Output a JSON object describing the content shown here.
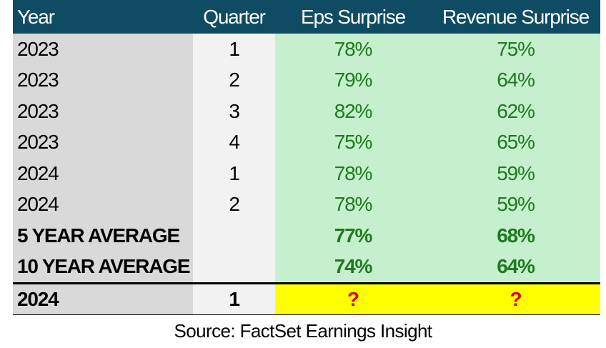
{
  "table": {
    "header": [
      "Year",
      "Quarter",
      "Eps Surprise",
      "Revenue Surprise"
    ],
    "rows": [
      {
        "year": "2023",
        "quarter": "1",
        "eps": "78%",
        "revenue": "75%"
      },
      {
        "year": "2023",
        "quarter": "2",
        "eps": "79%",
        "revenue": "64%"
      },
      {
        "year": "2023",
        "quarter": "3",
        "eps": "82%",
        "revenue": "62%"
      },
      {
        "year": "2023",
        "quarter": "4",
        "eps": "75%",
        "revenue": "65%"
      },
      {
        "year": "2024",
        "quarter": "1",
        "eps": "78%",
        "revenue": "59%"
      },
      {
        "year": "2024",
        "quarter": "2",
        "eps": "78%",
        "revenue": "59%"
      },
      {
        "year": "5 YEAR AVERAGE",
        "eps": "77%",
        "revenue": "68%"
      },
      {
        "year": "10 YEAR AVERAGE",
        "eps": "74%",
        "revenue": "64%"
      }
    ],
    "final": {
      "year": "2024",
      "quarter": "1",
      "eps": "?",
      "revenue": "?"
    }
  },
  "source": "Source: FactSet Earnings Insight"
}
